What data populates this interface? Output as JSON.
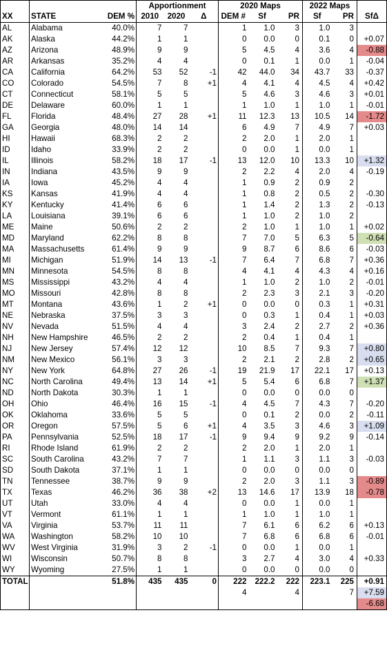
{
  "headers": {
    "group_apportionment": "Apportionment",
    "group_2020_maps": "2020 Maps",
    "group_2022_maps": "2022 Maps",
    "col_xx": "XX",
    "col_state": "STATE",
    "col_dem_pct": "DEM %",
    "col_2010": "2010",
    "col_2020": "2020",
    "col_delta": "Δ",
    "col_dem_num": "DEM #",
    "col_sf_2020": "Sf",
    "col_pr_2020": "PR",
    "col_sf_2022": "Sf",
    "col_pr_2022": "PR",
    "col_sf_delta": "SfΔ"
  },
  "rows": [
    {
      "xx": "AL",
      "state": "Alabama",
      "dem": "40.0%",
      "a2010": "7",
      "a2020": "7",
      "delta": "",
      "demn": "1",
      "sf20": "1.0",
      "pr20": "3",
      "sf22": "1.0",
      "pr22": "3",
      "sfd": "",
      "hl": ""
    },
    {
      "xx": "AK",
      "state": "Alaska",
      "dem": "44.2%",
      "a2010": "1",
      "a2020": "1",
      "delta": "",
      "demn": "0",
      "sf20": "0.0",
      "pr20": "0",
      "sf22": "0.1",
      "pr22": "0",
      "sfd": "+0.07",
      "hl": ""
    },
    {
      "xx": "AZ",
      "state": "Arizona",
      "dem": "48.9%",
      "a2010": "9",
      "a2020": "9",
      "delta": "",
      "demn": "5",
      "sf20": "4.5",
      "pr20": "4",
      "sf22": "3.6",
      "pr22": "4",
      "sfd": "-0.88",
      "hl": "red"
    },
    {
      "xx": "AR",
      "state": "Arkansas",
      "dem": "35.2%",
      "a2010": "4",
      "a2020": "4",
      "delta": "",
      "demn": "0",
      "sf20": "0.1",
      "pr20": "1",
      "sf22": "0.0",
      "pr22": "1",
      "sfd": "-0.04",
      "hl": ""
    },
    {
      "xx": "CA",
      "state": "California",
      "dem": "64.2%",
      "a2010": "53",
      "a2020": "52",
      "delta": "-1",
      "demn": "42",
      "sf20": "44.0",
      "pr20": "34",
      "sf22": "43.7",
      "pr22": "33",
      "sfd": "-0.37",
      "hl": ""
    },
    {
      "xx": "CO",
      "state": "Colorado",
      "dem": "54.5%",
      "a2010": "7",
      "a2020": "8",
      "delta": "+1",
      "demn": "4",
      "sf20": "4.1",
      "pr20": "4",
      "sf22": "4.5",
      "pr22": "4",
      "sfd": "+0.42",
      "hl": ""
    },
    {
      "xx": "CT",
      "state": "Connecticut",
      "dem": "58.1%",
      "a2010": "5",
      "a2020": "5",
      "delta": "",
      "demn": "5",
      "sf20": "4.6",
      "pr20": "3",
      "sf22": "4.6",
      "pr22": "3",
      "sfd": "+0.01",
      "hl": ""
    },
    {
      "xx": "DE",
      "state": "Delaware",
      "dem": "60.0%",
      "a2010": "1",
      "a2020": "1",
      "delta": "",
      "demn": "1",
      "sf20": "1.0",
      "pr20": "1",
      "sf22": "1.0",
      "pr22": "1",
      "sfd": "-0.01",
      "hl": ""
    },
    {
      "xx": "FL",
      "state": "Florida",
      "dem": "48.4%",
      "a2010": "27",
      "a2020": "28",
      "delta": "+1",
      "demn": "11",
      "sf20": "12.3",
      "pr20": "13",
      "sf22": "10.5",
      "pr22": "14",
      "sfd": "-1.72",
      "hl": "red"
    },
    {
      "xx": "GA",
      "state": "Georgia",
      "dem": "48.0%",
      "a2010": "14",
      "a2020": "14",
      "delta": "",
      "demn": "6",
      "sf20": "4.9",
      "pr20": "7",
      "sf22": "4.9",
      "pr22": "7",
      "sfd": "+0.03",
      "hl": ""
    },
    {
      "xx": "HI",
      "state": "Hawaii",
      "dem": "68.3%",
      "a2010": "2",
      "a2020": "2",
      "delta": "",
      "demn": "2",
      "sf20": "2.0",
      "pr20": "1",
      "sf22": "2.0",
      "pr22": "1",
      "sfd": "",
      "hl": ""
    },
    {
      "xx": "ID",
      "state": "Idaho",
      "dem": "33.9%",
      "a2010": "2",
      "a2020": "2",
      "delta": "",
      "demn": "0",
      "sf20": "0.0",
      "pr20": "1",
      "sf22": "0.0",
      "pr22": "1",
      "sfd": "",
      "hl": ""
    },
    {
      "xx": "IL",
      "state": "Illinois",
      "dem": "58.2%",
      "a2010": "18",
      "a2020": "17",
      "delta": "-1",
      "demn": "13",
      "sf20": "12.0",
      "pr20": "10",
      "sf22": "13.3",
      "pr22": "10",
      "sfd": "+1.32",
      "hl": "blue"
    },
    {
      "xx": "IN",
      "state": "Indiana",
      "dem": "43.5%",
      "a2010": "9",
      "a2020": "9",
      "delta": "",
      "demn": "2",
      "sf20": "2.2",
      "pr20": "4",
      "sf22": "2.0",
      "pr22": "4",
      "sfd": "-0.19",
      "hl": ""
    },
    {
      "xx": "IA",
      "state": "Iowa",
      "dem": "45.2%",
      "a2010": "4",
      "a2020": "4",
      "delta": "",
      "demn": "1",
      "sf20": "0.9",
      "pr20": "2",
      "sf22": "0.9",
      "pr22": "2",
      "sfd": "",
      "hl": ""
    },
    {
      "xx": "KS",
      "state": "Kansas",
      "dem": "41.9%",
      "a2010": "4",
      "a2020": "4",
      "delta": "",
      "demn": "1",
      "sf20": "0.8",
      "pr20": "2",
      "sf22": "0.5",
      "pr22": "2",
      "sfd": "-0.30",
      "hl": ""
    },
    {
      "xx": "KY",
      "state": "Kentucky",
      "dem": "41.4%",
      "a2010": "6",
      "a2020": "6",
      "delta": "",
      "demn": "1",
      "sf20": "1.4",
      "pr20": "2",
      "sf22": "1.3",
      "pr22": "2",
      "sfd": "-0.13",
      "hl": ""
    },
    {
      "xx": "LA",
      "state": "Louisiana",
      "dem": "39.1%",
      "a2010": "6",
      "a2020": "6",
      "delta": "",
      "demn": "1",
      "sf20": "1.0",
      "pr20": "2",
      "sf22": "1.0",
      "pr22": "2",
      "sfd": "",
      "hl": ""
    },
    {
      "xx": "ME",
      "state": "Maine",
      "dem": "50.6%",
      "a2010": "2",
      "a2020": "2",
      "delta": "",
      "demn": "2",
      "sf20": "1.0",
      "pr20": "1",
      "sf22": "1.0",
      "pr22": "1",
      "sfd": "+0.02",
      "hl": ""
    },
    {
      "xx": "MD",
      "state": "Maryland",
      "dem": "62.2%",
      "a2010": "8",
      "a2020": "8",
      "delta": "",
      "demn": "7",
      "sf20": "7.0",
      "pr20": "5",
      "sf22": "6.3",
      "pr22": "5",
      "sfd": "-0.64",
      "hl": "green"
    },
    {
      "xx": "MA",
      "state": "Massachusetts",
      "dem": "61.4%",
      "a2010": "9",
      "a2020": "9",
      "delta": "",
      "demn": "9",
      "sf20": "8.7",
      "pr20": "6",
      "sf22": "8.6",
      "pr22": "6",
      "sfd": "-0.03",
      "hl": ""
    },
    {
      "xx": "MI",
      "state": "Michigan",
      "dem": "51.9%",
      "a2010": "14",
      "a2020": "13",
      "delta": "-1",
      "demn": "7",
      "sf20": "6.4",
      "pr20": "7",
      "sf22": "6.8",
      "pr22": "7",
      "sfd": "+0.36",
      "hl": ""
    },
    {
      "xx": "MN",
      "state": "Minnesota",
      "dem": "54.5%",
      "a2010": "8",
      "a2020": "8",
      "delta": "",
      "demn": "4",
      "sf20": "4.1",
      "pr20": "4",
      "sf22": "4.3",
      "pr22": "4",
      "sfd": "+0.16",
      "hl": ""
    },
    {
      "xx": "MS",
      "state": "Mississippi",
      "dem": "43.2%",
      "a2010": "4",
      "a2020": "4",
      "delta": "",
      "demn": "1",
      "sf20": "1.0",
      "pr20": "2",
      "sf22": "1.0",
      "pr22": "2",
      "sfd": "-0.01",
      "hl": ""
    },
    {
      "xx": "MO",
      "state": "Missouri",
      "dem": "42.8%",
      "a2010": "8",
      "a2020": "8",
      "delta": "",
      "demn": "2",
      "sf20": "2.3",
      "pr20": "3",
      "sf22": "2.1",
      "pr22": "3",
      "sfd": "-0.20",
      "hl": ""
    },
    {
      "xx": "MT",
      "state": "Montana",
      "dem": "43.6%",
      "a2010": "1",
      "a2020": "2",
      "delta": "+1",
      "demn": "0",
      "sf20": "0.0",
      "pr20": "0",
      "sf22": "0.3",
      "pr22": "1",
      "sfd": "+0.31",
      "hl": ""
    },
    {
      "xx": "NE",
      "state": "Nebraska",
      "dem": "37.5%",
      "a2010": "3",
      "a2020": "3",
      "delta": "",
      "demn": "0",
      "sf20": "0.3",
      "pr20": "1",
      "sf22": "0.4",
      "pr22": "1",
      "sfd": "+0.03",
      "hl": ""
    },
    {
      "xx": "NV",
      "state": "Nevada",
      "dem": "51.5%",
      "a2010": "4",
      "a2020": "4",
      "delta": "",
      "demn": "3",
      "sf20": "2.4",
      "pr20": "2",
      "sf22": "2.7",
      "pr22": "2",
      "sfd": "+0.36",
      "hl": ""
    },
    {
      "xx": "NH",
      "state": "New Hampshire",
      "dem": "46.5%",
      "a2010": "2",
      "a2020": "2",
      "delta": "",
      "demn": "2",
      "sf20": "0.4",
      "pr20": "1",
      "sf22": "0.4",
      "pr22": "1",
      "sfd": "",
      "hl": ""
    },
    {
      "xx": "NJ",
      "state": "New Jersey",
      "dem": "57.4%",
      "a2010": "12",
      "a2020": "12",
      "delta": "",
      "demn": "10",
      "sf20": "8.5",
      "pr20": "7",
      "sf22": "9.3",
      "pr22": "7",
      "sfd": "+0.80",
      "hl": "blue"
    },
    {
      "xx": "NM",
      "state": "New Mexico",
      "dem": "56.1%",
      "a2010": "3",
      "a2020": "3",
      "delta": "",
      "demn": "2",
      "sf20": "2.1",
      "pr20": "2",
      "sf22": "2.8",
      "pr22": "2",
      "sfd": "+0.65",
      "hl": "blue"
    },
    {
      "xx": "NY",
      "state": "New York",
      "dem": "64.8%",
      "a2010": "27",
      "a2020": "26",
      "delta": "-1",
      "demn": "19",
      "sf20": "21.9",
      "pr20": "17",
      "sf22": "22.1",
      "pr22": "17",
      "sfd": "+0.13",
      "hl": ""
    },
    {
      "xx": "NC",
      "state": "North Carolina",
      "dem": "49.4%",
      "a2010": "13",
      "a2020": "14",
      "delta": "+1",
      "demn": "5",
      "sf20": "5.4",
      "pr20": "6",
      "sf22": "6.8",
      "pr22": "7",
      "sfd": "+1.37",
      "hl": "green"
    },
    {
      "xx": "ND",
      "state": "North Dakota",
      "dem": "30.3%",
      "a2010": "1",
      "a2020": "1",
      "delta": "",
      "demn": "0",
      "sf20": "0.0",
      "pr20": "0",
      "sf22": "0.0",
      "pr22": "0",
      "sfd": "",
      "hl": ""
    },
    {
      "xx": "OH",
      "state": "Ohio",
      "dem": "46.4%",
      "a2010": "16",
      "a2020": "15",
      "delta": "-1",
      "demn": "4",
      "sf20": "4.5",
      "pr20": "7",
      "sf22": "4.3",
      "pr22": "7",
      "sfd": "-0.20",
      "hl": ""
    },
    {
      "xx": "OK",
      "state": "Oklahoma",
      "dem": "33.6%",
      "a2010": "5",
      "a2020": "5",
      "delta": "",
      "demn": "0",
      "sf20": "0.1",
      "pr20": "2",
      "sf22": "0.0",
      "pr22": "2",
      "sfd": "-0.11",
      "hl": ""
    },
    {
      "xx": "OR",
      "state": "Oregon",
      "dem": "57.5%",
      "a2010": "5",
      "a2020": "6",
      "delta": "+1",
      "demn": "4",
      "sf20": "3.5",
      "pr20": "3",
      "sf22": "4.6",
      "pr22": "3",
      "sfd": "+1.09",
      "hl": "blue"
    },
    {
      "xx": "PA",
      "state": "Pennsylvania",
      "dem": "52.5%",
      "a2010": "18",
      "a2020": "17",
      "delta": "-1",
      "demn": "9",
      "sf20": "9.4",
      "pr20": "9",
      "sf22": "9.2",
      "pr22": "9",
      "sfd": "-0.14",
      "hl": ""
    },
    {
      "xx": "RI",
      "state": "Rhode Island",
      "dem": "61.9%",
      "a2010": "2",
      "a2020": "2",
      "delta": "",
      "demn": "2",
      "sf20": "2.0",
      "pr20": "1",
      "sf22": "2.0",
      "pr22": "1",
      "sfd": "",
      "hl": ""
    },
    {
      "xx": "SC",
      "state": "South Carolina",
      "dem": "43.2%",
      "a2010": "7",
      "a2020": "7",
      "delta": "",
      "demn": "1",
      "sf20": "1.1",
      "pr20": "3",
      "sf22": "1.1",
      "pr22": "3",
      "sfd": "-0.03",
      "hl": ""
    },
    {
      "xx": "SD",
      "state": "South Dakota",
      "dem": "37.1%",
      "a2010": "1",
      "a2020": "1",
      "delta": "",
      "demn": "0",
      "sf20": "0.0",
      "pr20": "0",
      "sf22": "0.0",
      "pr22": "0",
      "sfd": "",
      "hl": ""
    },
    {
      "xx": "TN",
      "state": "Tennessee",
      "dem": "38.7%",
      "a2010": "9",
      "a2020": "9",
      "delta": "",
      "demn": "2",
      "sf20": "2.0",
      "pr20": "3",
      "sf22": "1.1",
      "pr22": "3",
      "sfd": "-0.89",
      "hl": "red"
    },
    {
      "xx": "TX",
      "state": "Texas",
      "dem": "46.2%",
      "a2010": "36",
      "a2020": "38",
      "delta": "+2",
      "demn": "13",
      "sf20": "14.6",
      "pr20": "17",
      "sf22": "13.9",
      "pr22": "18",
      "sfd": "-0.78",
      "hl": "red"
    },
    {
      "xx": "UT",
      "state": "Utah",
      "dem": "33.0%",
      "a2010": "4",
      "a2020": "4",
      "delta": "",
      "demn": "0",
      "sf20": "0.0",
      "pr20": "1",
      "sf22": "0.0",
      "pr22": "1",
      "sfd": "",
      "hl": ""
    },
    {
      "xx": "VT",
      "state": "Vermont",
      "dem": "61.1%",
      "a2010": "1",
      "a2020": "1",
      "delta": "",
      "demn": "1",
      "sf20": "1.0",
      "pr20": "1",
      "sf22": "1.0",
      "pr22": "1",
      "sfd": "",
      "hl": ""
    },
    {
      "xx": "VA",
      "state": "Virginia",
      "dem": "53.7%",
      "a2010": "11",
      "a2020": "11",
      "delta": "",
      "demn": "7",
      "sf20": "6.1",
      "pr20": "6",
      "sf22": "6.2",
      "pr22": "6",
      "sfd": "+0.13",
      "hl": ""
    },
    {
      "xx": "WA",
      "state": "Washington",
      "dem": "58.2%",
      "a2010": "10",
      "a2020": "10",
      "delta": "",
      "demn": "7",
      "sf20": "6.8",
      "pr20": "6",
      "sf22": "6.8",
      "pr22": "6",
      "sfd": "-0.01",
      "hl": ""
    },
    {
      "xx": "WV",
      "state": "West Virginia",
      "dem": "31.9%",
      "a2010": "3",
      "a2020": "2",
      "delta": "-1",
      "demn": "0",
      "sf20": "0.0",
      "pr20": "1",
      "sf22": "0.0",
      "pr22": "1",
      "sfd": "",
      "hl": ""
    },
    {
      "xx": "WI",
      "state": "Wisconsin",
      "dem": "50.7%",
      "a2010": "8",
      "a2020": "8",
      "delta": "",
      "demn": "3",
      "sf20": "2.7",
      "pr20": "4",
      "sf22": "3.0",
      "pr22": "4",
      "sfd": "+0.33",
      "hl": ""
    },
    {
      "xx": "WY",
      "state": "Wyoming",
      "dem": "27.5%",
      "a2010": "1",
      "a2020": "1",
      "delta": "",
      "demn": "0",
      "sf20": "0.0",
      "pr20": "0",
      "sf22": "0.0",
      "pr22": "0",
      "sfd": "",
      "hl": ""
    }
  ],
  "total": {
    "label": "TOTAL",
    "dem": "51.8%",
    "a2010": "435",
    "a2020": "435",
    "delta": "0",
    "demn": "222",
    "sf20": "222.2",
    "pr20": "222",
    "sf22": "223.1",
    "pr22": "225",
    "sfd": "+0.91",
    "row2_demn": "4",
    "row2_pr20": "4",
    "row2_pr22": "7",
    "row2_sfd": "+7.59",
    "row3_sfd": "-6.68"
  },
  "highlight_colors": {
    "red": "#e58a8a",
    "blue": "#d8deef",
    "green": "#cfe0b4"
  }
}
